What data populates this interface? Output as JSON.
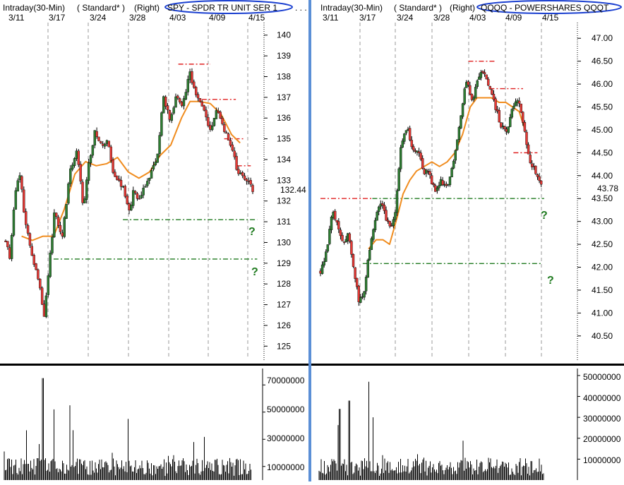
{
  "window": {
    "divider_color": "#5b8fd6",
    "separator_color": "#000000"
  },
  "colors": {
    "up_candle": "#2e7d32",
    "down_candle": "#e53935",
    "wick": "#000000",
    "moving_average": "#f08c1e",
    "resistance": "#e02020",
    "support": "#1f7a1f",
    "question_mark": "#1f7a1f",
    "highlight_ellipse": "#1a3fd0",
    "volume": "#000000"
  },
  "panels": [
    {
      "id": "spy",
      "header": {
        "interval": "Intraday(30-Min)",
        "style": "( Standard* )",
        "axis": "(Right)",
        "symbol": "SPY - SPDR TR UNIT SER 1",
        "trail": ". . ."
      },
      "date_labels": [
        "3/11",
        "3/17",
        "3/24",
        "3/28",
        "4/03",
        "4/09",
        "4/15"
      ],
      "last_price_label": "132.44",
      "question_marks": [
        "?",
        "?"
      ],
      "volume_axis_labels": [
        "70000000",
        "50000000",
        "30000000",
        "10000000"
      ]
    },
    {
      "id": "qqqq",
      "header": {
        "interval": "Intraday(30-Min)",
        "style": "( Standard* )",
        "axis": "(Right)",
        "symbol": "QQQQ - POWERSHARES QQQT"
      },
      "date_labels": [
        "3/11",
        "3/17",
        "3/24",
        "3/28",
        "4/03",
        "4/09",
        "4/15"
      ],
      "last_price_label": "43.78",
      "question_marks": [
        "?",
        "?"
      ],
      "volume_axis_labels": [
        "50000000",
        "40000000",
        "30000000",
        "20000000",
        "10000000"
      ]
    }
  ],
  "chart_data": [
    {
      "type": "candlestick",
      "symbol": "SPY - SPDR TR UNIT SER 1",
      "interval": "Intraday(30-Min)",
      "x_labels": [
        "3/11",
        "3/17",
        "3/24",
        "3/28",
        "4/03",
        "4/09",
        "4/15"
      ],
      "y_ticks": [
        125,
        126,
        127,
        128,
        129,
        130,
        131,
        132,
        133,
        134,
        135,
        136,
        137,
        138,
        139,
        140
      ],
      "ylim": [
        124.5,
        140.4
      ],
      "last_price": 132.44,
      "close_path": [
        {
          "day": 0.0,
          "close": 130.1
        },
        {
          "day": 0.4,
          "close": 129.3
        },
        {
          "day": 0.9,
          "close": 132.5
        },
        {
          "day": 1.3,
          "close": 133.4
        },
        {
          "day": 1.8,
          "close": 131.2
        },
        {
          "day": 2.4,
          "close": 129.5
        },
        {
          "day": 3.0,
          "close": 128.5
        },
        {
          "day": 3.6,
          "close": 126.5
        },
        {
          "day": 4.0,
          "close": 128.5
        },
        {
          "day": 4.6,
          "close": 131.5
        },
        {
          "day": 5.3,
          "close": 130.2
        },
        {
          "day": 6.0,
          "close": 133.3
        },
        {
          "day": 6.7,
          "close": 134.5
        },
        {
          "day": 7.3,
          "close": 131.6
        },
        {
          "day": 7.8,
          "close": 133.8
        },
        {
          "day": 8.4,
          "close": 135.4
        },
        {
          "day": 9.0,
          "close": 134.7
        },
        {
          "day": 9.6,
          "close": 134.8
        },
        {
          "day": 10.1,
          "close": 133.2
        },
        {
          "day": 10.9,
          "close": 132.8
        },
        {
          "day": 11.6,
          "close": 131.5
        },
        {
          "day": 12.0,
          "close": 132.5
        },
        {
          "day": 12.4,
          "close": 131.9
        },
        {
          "day": 14.2,
          "close": 134.0
        },
        {
          "day": 14.8,
          "close": 137.0
        },
        {
          "day": 15.4,
          "close": 136.0
        },
        {
          "day": 16.0,
          "close": 137.0
        },
        {
          "day": 16.6,
          "close": 136.6
        },
        {
          "day": 17.3,
          "close": 138.2
        },
        {
          "day": 17.9,
          "close": 137.0
        },
        {
          "day": 18.6,
          "close": 136.4
        },
        {
          "day": 19.2,
          "close": 135.3
        },
        {
          "day": 19.8,
          "close": 136.5
        },
        {
          "day": 20.5,
          "close": 135.5
        },
        {
          "day": 21.1,
          "close": 134.8
        },
        {
          "day": 21.7,
          "close": 133.5
        },
        {
          "day": 22.3,
          "close": 133.1
        },
        {
          "day": 22.9,
          "close": 132.9
        },
        {
          "day": 23.3,
          "close": 132.44
        }
      ],
      "moving_average": [
        {
          "day": 1.5,
          "value": 130.3
        },
        {
          "day": 2.5,
          "value": 130.1
        },
        {
          "day": 3.5,
          "value": 130.3
        },
        {
          "day": 4.5,
          "value": 130.3
        },
        {
          "day": 5.5,
          "value": 131.6
        },
        {
          "day": 6.5,
          "value": 133.3
        },
        {
          "day": 7.5,
          "value": 133.9
        },
        {
          "day": 8.5,
          "value": 133.7
        },
        {
          "day": 9.5,
          "value": 133.8
        },
        {
          "day": 10.5,
          "value": 134.1
        },
        {
          "day": 11.5,
          "value": 133.4
        },
        {
          "day": 12.5,
          "value": 133.1
        },
        {
          "day": 13.5,
          "value": 133.4
        },
        {
          "day": 14.5,
          "value": 134.2
        },
        {
          "day": 15.5,
          "value": 134.7
        },
        {
          "day": 16.5,
          "value": 136.0
        },
        {
          "day": 17.3,
          "value": 136.8
        },
        {
          "day": 18.2,
          "value": 136.8
        },
        {
          "day": 19.2,
          "value": 136.7
        },
        {
          "day": 20.2,
          "value": 136.2
        },
        {
          "day": 21.2,
          "value": 135.2
        },
        {
          "day": 22.0,
          "value": 134.8
        }
      ],
      "resistance_lines": [
        {
          "value": 138.6,
          "from_day": 16.2,
          "to_day": 19.2
        },
        {
          "value": 136.9,
          "from_day": 18.4,
          "to_day": 21.6
        },
        {
          "value": 135.0,
          "from_day": 20.5,
          "to_day": 22.3
        },
        {
          "value": 133.7,
          "from_day": 21.7,
          "to_day": 23.0
        }
      ],
      "support_lines": [
        {
          "value": 131.1,
          "from_day": 11.0,
          "to_day": 23.6
        },
        {
          "value": 129.2,
          "from_day": 4.5,
          "to_day": 23.6
        }
      ],
      "volume": {
        "y_ticks": [
          10000000,
          30000000,
          50000000,
          70000000
        ],
        "ylim": [
          0,
          80000000
        ],
        "notable_spikes": [
          {
            "day": 3.5,
            "value": 75000000
          },
          {
            "day": 4.5,
            "value": 52000000
          },
          {
            "day": 6.0,
            "value": 55000000
          },
          {
            "day": 11.5,
            "value": 45000000
          }
        ],
        "typical": 12000000
      }
    },
    {
      "type": "candlestick",
      "symbol": "QQQQ - POWERSHARES QQQT",
      "interval": "Intraday(30-Min)",
      "x_labels": [
        "3/11",
        "3/17",
        "3/24",
        "3/28",
        "4/03",
        "4/09",
        "4/15"
      ],
      "y_ticks": [
        40.5,
        41.0,
        41.5,
        42.0,
        42.5,
        43.0,
        43.5,
        44.0,
        44.5,
        45.0,
        45.5,
        46.0,
        46.5,
        47.0
      ],
      "ylim": [
        40.05,
        47.25
      ],
      "last_price": 43.78,
      "close_path": [
        {
          "day": 0.0,
          "close": 41.9
        },
        {
          "day": 0.6,
          "close": 42.3
        },
        {
          "day": 1.2,
          "close": 43.2
        },
        {
          "day": 1.7,
          "close": 43.0
        },
        {
          "day": 2.3,
          "close": 42.5
        },
        {
          "day": 2.9,
          "close": 42.7
        },
        {
          "day": 3.5,
          "close": 41.9
        },
        {
          "day": 4.0,
          "close": 41.25
        },
        {
          "day": 4.5,
          "close": 41.4
        },
        {
          "day": 5.0,
          "close": 42.2
        },
        {
          "day": 5.6,
          "close": 43.0
        },
        {
          "day": 6.2,
          "close": 43.45
        },
        {
          "day": 6.8,
          "close": 43.1
        },
        {
          "day": 7.3,
          "close": 42.8
        },
        {
          "day": 7.8,
          "close": 43.2
        },
        {
          "day": 8.4,
          "close": 44.7
        },
        {
          "day": 9.0,
          "close": 45.1
        },
        {
          "day": 9.6,
          "close": 44.6
        },
        {
          "day": 10.2,
          "close": 44.5
        },
        {
          "day": 10.8,
          "close": 44.1
        },
        {
          "day": 11.4,
          "close": 44.0
        },
        {
          "day": 12.0,
          "close": 43.6
        },
        {
          "day": 12.6,
          "close": 43.9
        },
        {
          "day": 13.2,
          "close": 43.7
        },
        {
          "day": 14.0,
          "close": 44.5
        },
        {
          "day": 14.6,
          "close": 45.3
        },
        {
          "day": 15.2,
          "close": 46.1
        },
        {
          "day": 15.8,
          "close": 45.6
        },
        {
          "day": 16.4,
          "close": 46.1
        },
        {
          "day": 17.0,
          "close": 46.3
        },
        {
          "day": 17.6,
          "close": 45.9
        },
        {
          "day": 18.2,
          "close": 45.5
        },
        {
          "day": 18.8,
          "close": 45.1
        },
        {
          "day": 19.4,
          "close": 44.9
        },
        {
          "day": 20.0,
          "close": 45.5
        },
        {
          "day": 20.6,
          "close": 45.7
        },
        {
          "day": 21.2,
          "close": 45.0
        },
        {
          "day": 21.8,
          "close": 44.3
        },
        {
          "day": 22.4,
          "close": 44.1
        },
        {
          "day": 23.0,
          "close": 43.78
        }
      ],
      "moving_average": [
        {
          "day": 5.0,
          "value": 42.4
        },
        {
          "day": 5.8,
          "value": 42.6
        },
        {
          "day": 6.5,
          "value": 42.6
        },
        {
          "day": 7.2,
          "value": 42.5
        },
        {
          "day": 8.0,
          "value": 43.1
        },
        {
          "day": 8.6,
          "value": 43.6
        },
        {
          "day": 9.3,
          "value": 43.9
        },
        {
          "day": 10.0,
          "value": 44.1
        },
        {
          "day": 10.8,
          "value": 44.2
        },
        {
          "day": 11.6,
          "value": 44.3
        },
        {
          "day": 12.4,
          "value": 44.2
        },
        {
          "day": 13.2,
          "value": 44.3
        },
        {
          "day": 14.0,
          "value": 44.5
        },
        {
          "day": 14.8,
          "value": 44.9
        },
        {
          "day": 15.6,
          "value": 45.5
        },
        {
          "day": 16.3,
          "value": 45.7
        },
        {
          "day": 17.0,
          "value": 45.7
        },
        {
          "day": 17.8,
          "value": 45.7
        },
        {
          "day": 18.6,
          "value": 45.6
        },
        {
          "day": 19.3,
          "value": 45.6
        },
        {
          "day": 20.0,
          "value": 45.5
        },
        {
          "day": 20.7,
          "value": 45.4
        },
        {
          "day": 21.3,
          "value": 45.0
        }
      ],
      "resistance_lines": [
        {
          "value": 46.5,
          "from_day": 15.4,
          "to_day": 18.2
        },
        {
          "value": 45.9,
          "from_day": 17.6,
          "to_day": 21.1
        },
        {
          "value": 44.5,
          "from_day": 20.1,
          "to_day": 22.6
        },
        {
          "value": 43.5,
          "from_day": 0.0,
          "to_day": 5.4
        }
      ],
      "support_lines": [
        {
          "value": 43.5,
          "from_day": 5.4,
          "to_day": 23.3
        },
        {
          "value": 42.08,
          "from_day": 4.4,
          "to_day": 23.0
        }
      ],
      "volume": {
        "y_ticks": [
          10000000,
          20000000,
          30000000,
          40000000,
          50000000
        ],
        "ylim": [
          0,
          52000000
        ],
        "notable_spikes": [
          {
            "day": 2.0,
            "value": 34000000
          },
          {
            "day": 3.0,
            "value": 38000000
          },
          {
            "day": 5.0,
            "value": 47000000
          },
          {
            "day": 5.5,
            "value": 30000000
          }
        ],
        "typical": 8000000
      }
    }
  ]
}
